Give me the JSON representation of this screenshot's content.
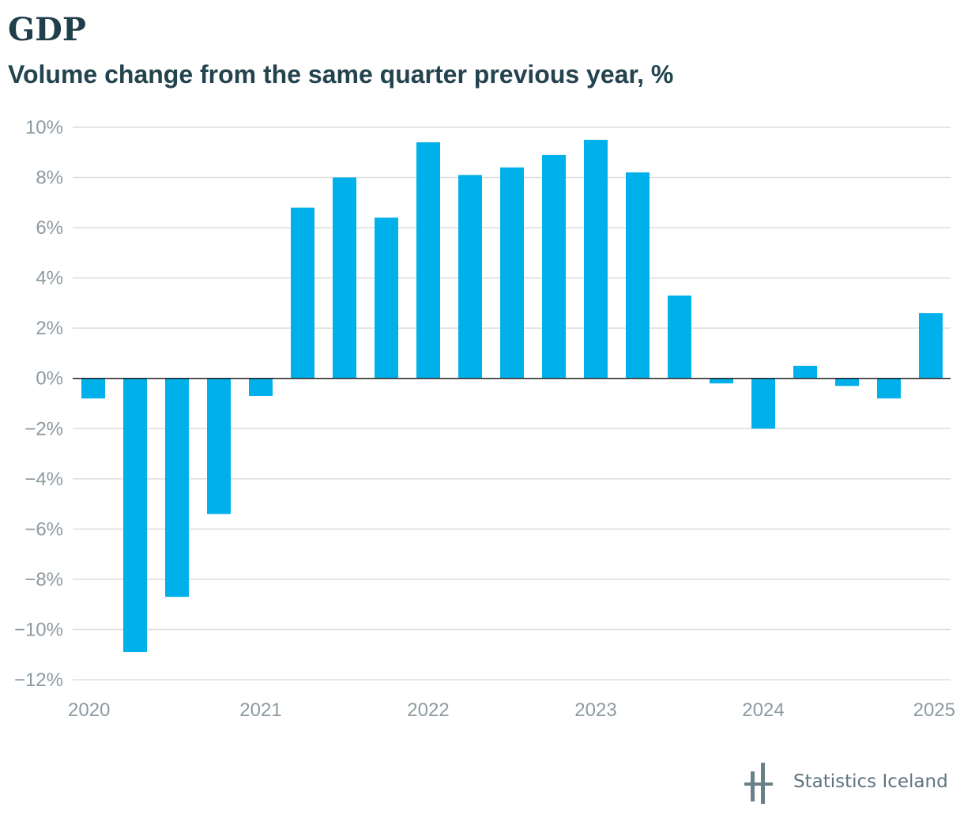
{
  "header": {
    "title": "GDP",
    "subtitle": "Volume change from the same quarter previous year, %"
  },
  "branding": {
    "name": "Statistics Iceland",
    "logo_icon": "statistics-iceland-logo-icon",
    "logo_color": "#6b7f88"
  },
  "colors": {
    "bar": "#00b0ea",
    "gridline": "#dddddd",
    "zero_line": "#222222",
    "tick_text": "#8d9aa1"
  },
  "chart_data": {
    "type": "bar",
    "title": "GDP",
    "subtitle": "Volume change from the same quarter previous year, %",
    "xlabel": "",
    "ylabel": "",
    "categories": [
      "2020Q1",
      "2020Q2",
      "2020Q3",
      "2020Q4",
      "2021Q1",
      "2021Q2",
      "2021Q3",
      "2021Q4",
      "2022Q1",
      "2022Q2",
      "2022Q3",
      "2022Q4",
      "2023Q1",
      "2023Q2",
      "2023Q3",
      "2023Q4",
      "2024Q1",
      "2024Q2",
      "2024Q3",
      "2024Q4",
      "2025Q1"
    ],
    "values": [
      -0.8,
      -10.9,
      -8.7,
      -5.4,
      -0.7,
      6.8,
      8.0,
      6.4,
      9.4,
      8.1,
      8.4,
      8.9,
      9.5,
      8.2,
      3.3,
      -0.2,
      -2.0,
      0.5,
      -0.3,
      -0.8,
      2.6
    ],
    "ylim": [
      -12,
      10
    ],
    "yticks": [
      10,
      8,
      6,
      4,
      2,
      0,
      -2,
      -4,
      -6,
      -8,
      -10,
      -12
    ],
    "ytick_labels": [
      "10%",
      "8%",
      "6%",
      "4%",
      "2%",
      "0%",
      "−2%",
      "−4%",
      "−6%",
      "−8%",
      "−10%",
      "−12%"
    ],
    "xticks": [
      "2020",
      "2021",
      "2022",
      "2023",
      "2024",
      "2025"
    ],
    "grid": true,
    "legend": "none"
  }
}
